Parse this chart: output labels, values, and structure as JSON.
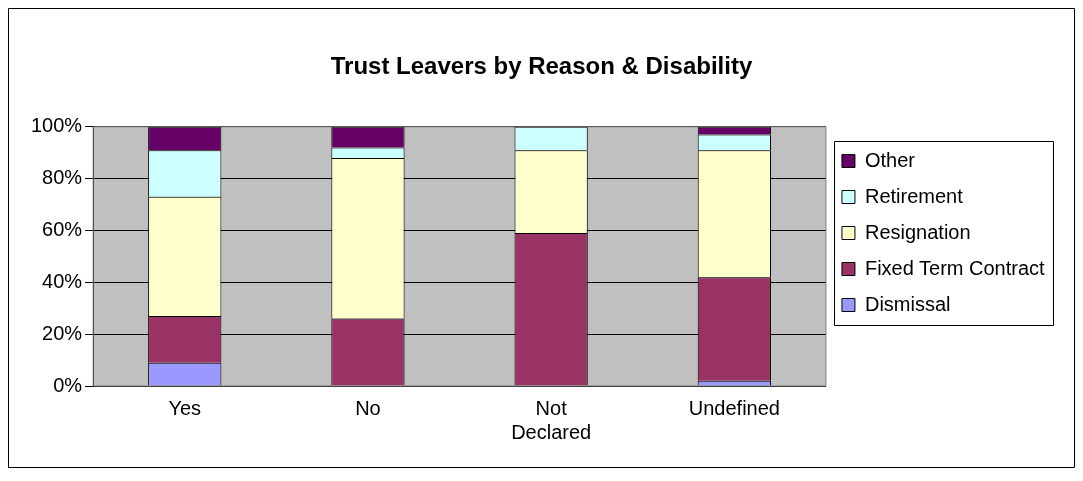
{
  "chart_data": {
    "type": "bar",
    "title": "Trust Leavers by Reason & Disability",
    "categories": [
      "Yes",
      "No",
      "Not Declared",
      "Undefined"
    ],
    "stacked": true,
    "series": [
      {
        "name": "Dismissal",
        "color": "#9999ff",
        "values": [
          9,
          0,
          0,
          2
        ]
      },
      {
        "name": "Fixed Term Contract",
        "color": "#993366",
        "values": [
          18,
          26,
          59,
          40
        ]
      },
      {
        "name": "Resignation",
        "color": "#ffffcc",
        "values": [
          46,
          62,
          32,
          49
        ]
      },
      {
        "name": "Retirement",
        "color": "#ccffff",
        "values": [
          18,
          4,
          9,
          6
        ]
      },
      {
        "name": "Other",
        "color": "#660066",
        "values": [
          9,
          8,
          0,
          3
        ]
      }
    ],
    "ylim": [
      0,
      100
    ],
    "yticks": [
      {
        "value": 0,
        "label": "0%"
      },
      {
        "value": 20,
        "label": "20%"
      },
      {
        "value": 40,
        "label": "40%"
      },
      {
        "value": 60,
        "label": "60%"
      },
      {
        "value": 80,
        "label": "80%"
      },
      {
        "value": 100,
        "label": "100%"
      }
    ],
    "grid": "y",
    "legend": "right"
  }
}
